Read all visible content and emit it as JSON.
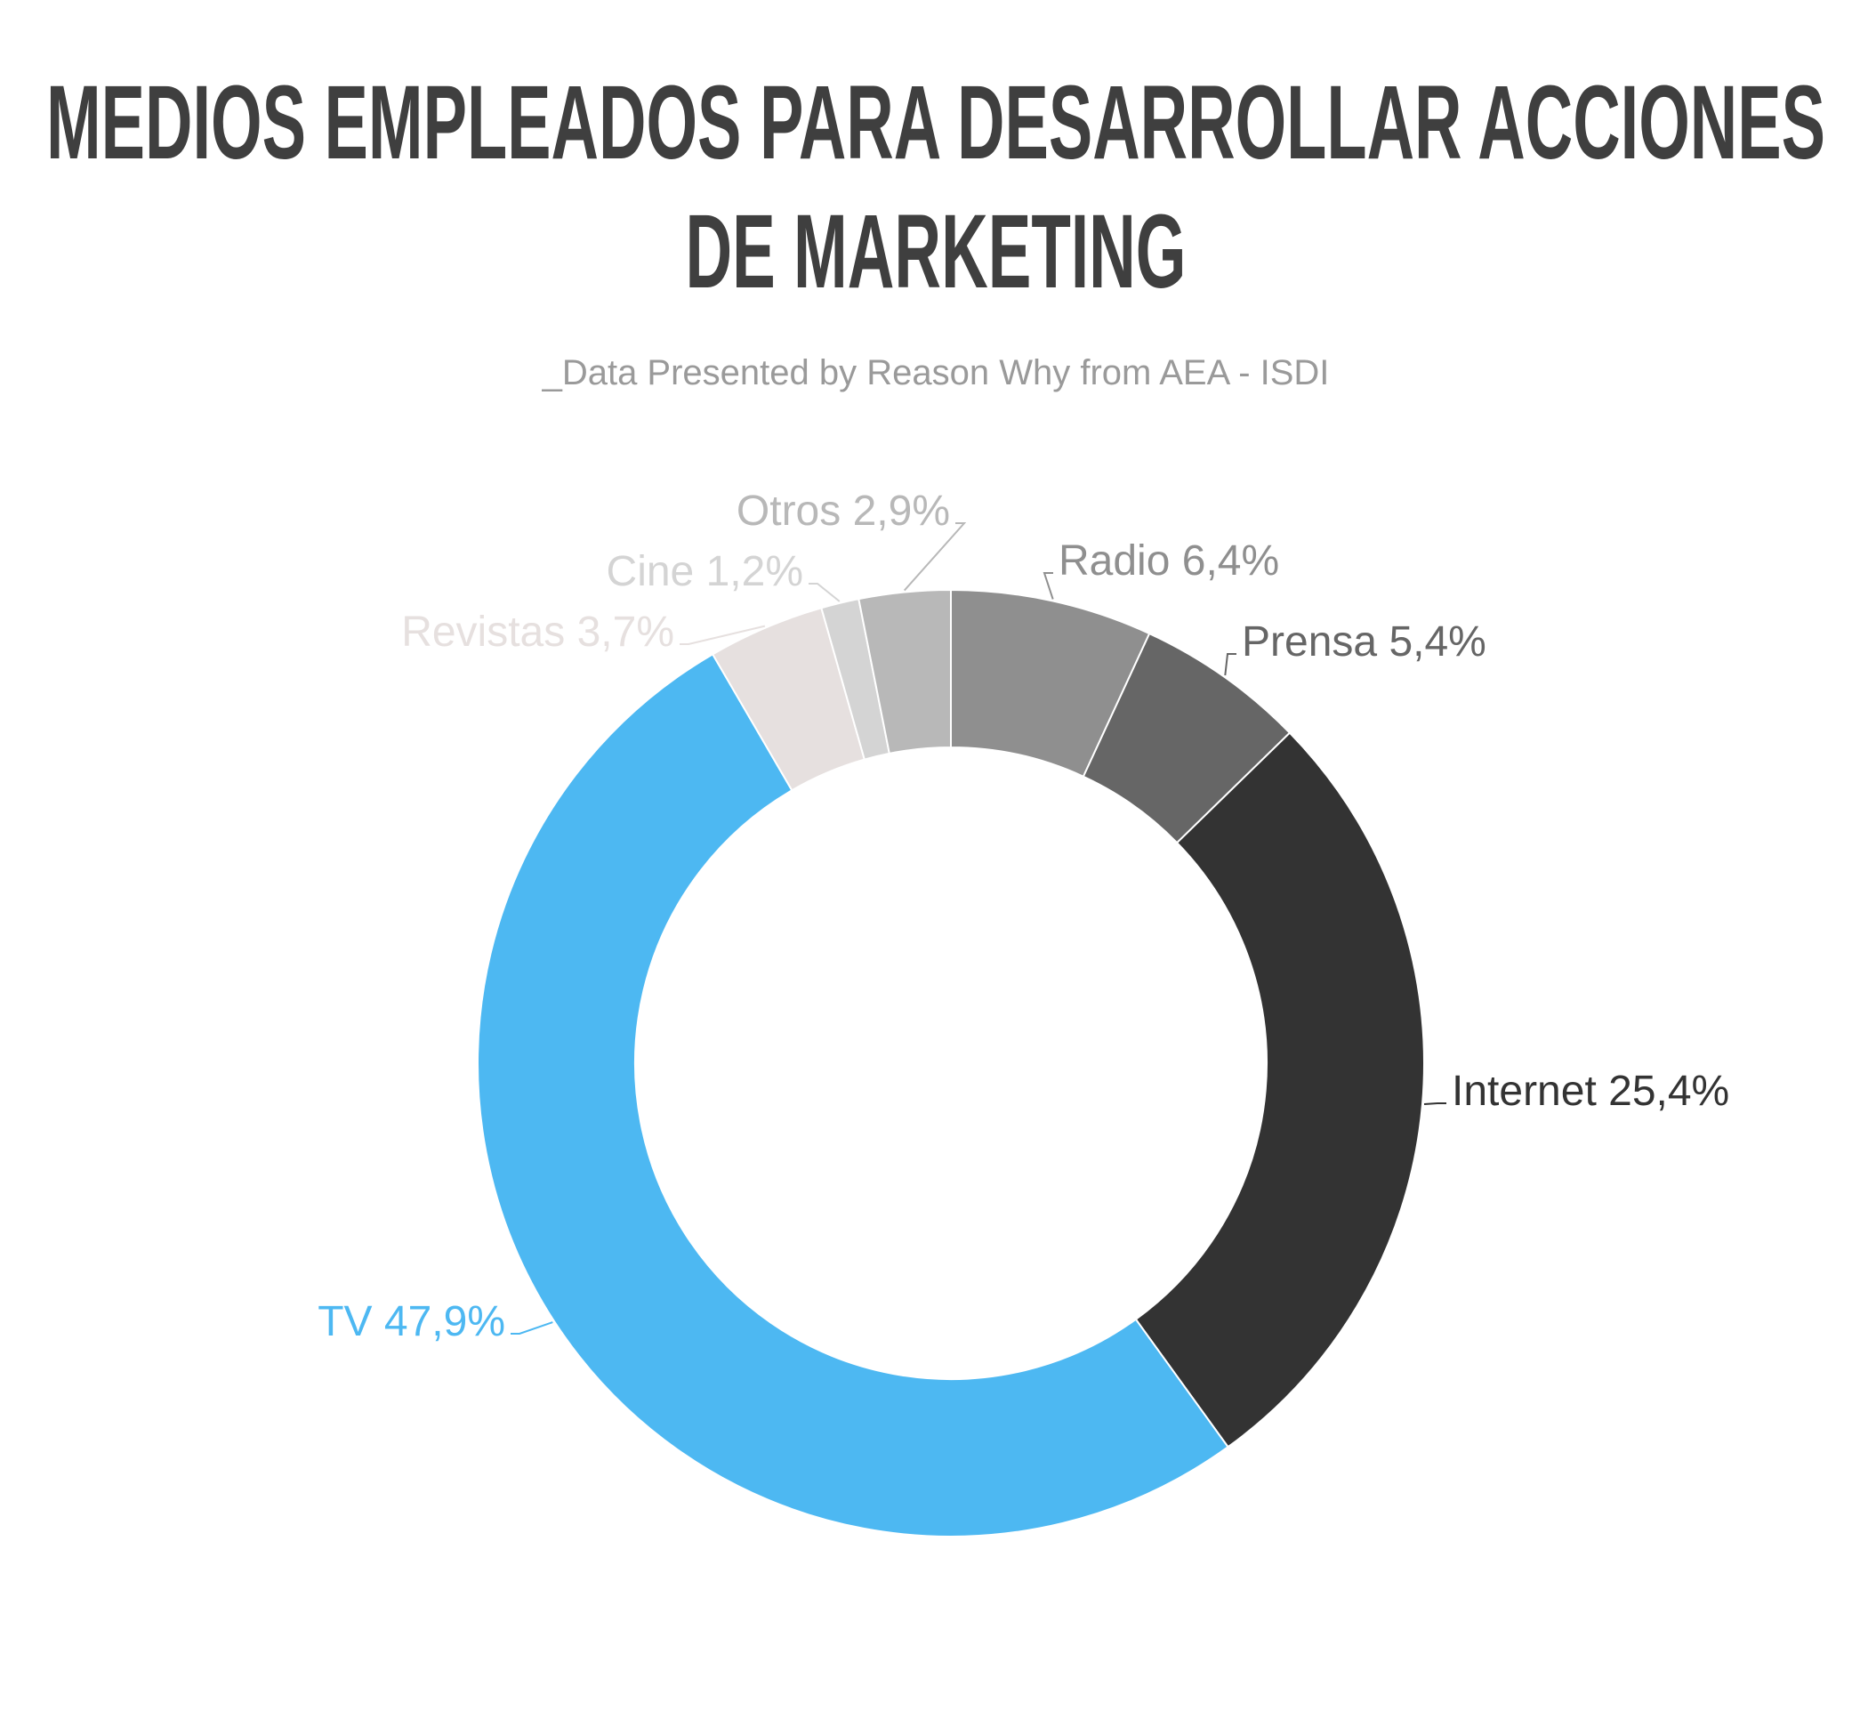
{
  "chart_data": {
    "type": "donut",
    "title": [
      "MEDIOS EMPLEADOS PARA DESARROLLAR ACCIONES",
      "DE MARKETING"
    ],
    "subtitle": "_Data Presented by Reason Why from AEA - ISDI",
    "categories": [
      "Radio",
      "Prensa",
      "Internet",
      "TV",
      "Revistas",
      "Cine",
      "Otros"
    ],
    "values": [
      6.4,
      5.4,
      25.4,
      47.9,
      3.7,
      1.2,
      2.9
    ],
    "value_labels": [
      "6,4%",
      "5,4%",
      "25,4%",
      "47,9%",
      "3,7%",
      "1,2%",
      "2,9%"
    ],
    "colors": [
      "#8f8f8f",
      "#666666",
      "#333333",
      "#4db8f2",
      "#e6e0df",
      "#d4d4d4",
      "#b8b8b8"
    ]
  }
}
